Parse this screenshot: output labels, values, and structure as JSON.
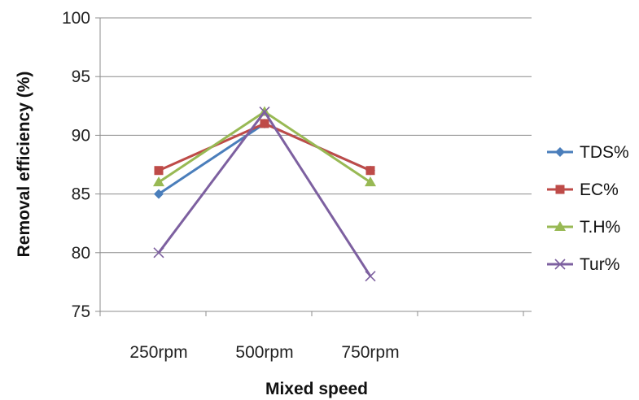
{
  "chart_data": {
    "type": "line",
    "title": "",
    "xlabel": "Mixed speed",
    "ylabel": "Removal efficiency (%)",
    "categories": [
      "250rpm",
      "500rpm",
      "750rpm"
    ],
    "ylim": [
      75,
      100
    ],
    "yticks": [
      "75",
      "80",
      "85",
      "90",
      "95",
      "100"
    ],
    "grid": "horizontal",
    "legend_position": "right",
    "series": [
      {
        "name": "TDS%",
        "values": [
          85,
          91,
          87
        ],
        "color": "#4a7ebb",
        "marker": "diamond"
      },
      {
        "name": "EC%",
        "values": [
          87,
          91,
          87
        ],
        "color": "#be4b48",
        "marker": "square"
      },
      {
        "name": "T.H%",
        "values": [
          86,
          92,
          86
        ],
        "color": "#98b954",
        "marker": "triangle"
      },
      {
        "name": "Tur%",
        "values": [
          80,
          92,
          78
        ],
        "color": "#7d60a0",
        "marker": "x"
      }
    ]
  }
}
